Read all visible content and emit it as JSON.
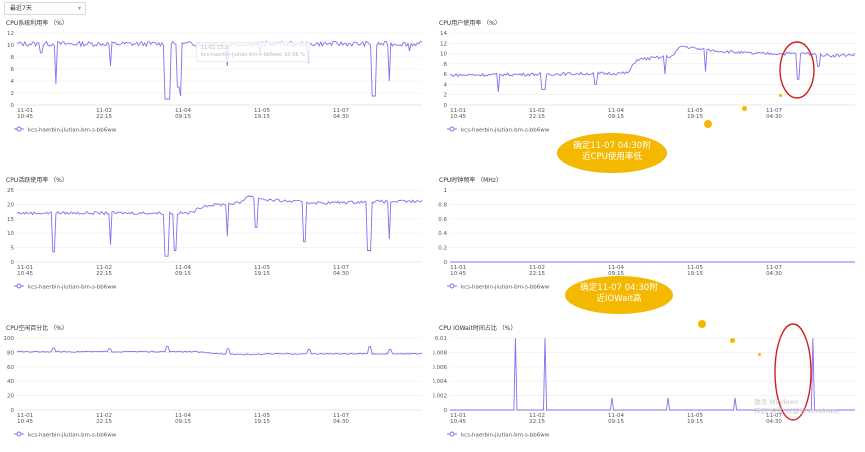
{
  "toolbar": {
    "range_label": "最近7天"
  },
  "x_ticks": [
    [
      "11-01",
      "10:45"
    ],
    [
      "11-02",
      "22:15"
    ],
    [
      "11-04",
      "09:15"
    ],
    [
      "11-05",
      "19:15"
    ],
    [
      "11-07",
      "04:30"
    ]
  ],
  "legend_label": "kcs-haerbin-jiutian-bm-s-bb6ww",
  "series_color": "#8c6cf0",
  "highlight_color": "#d21e1e",
  "panels": [
    {
      "id": "cpu_sys",
      "title": "CPU系统利用率 （%）",
      "chart_data": {
        "type": "line",
        "ylim": [
          0,
          12
        ],
        "yticks": [
          "12",
          "10",
          "8",
          "6",
          "4",
          "2",
          "0"
        ],
        "base": 10.2,
        "noise": 0.4,
        "trend": [],
        "dips": [
          [
            0.06,
            8.7,
            2
          ],
          [
            0.095,
            3.5,
            1
          ],
          [
            0.23,
            6.5,
            1
          ],
          [
            0.37,
            1,
            3
          ],
          [
            0.4,
            3,
            2
          ],
          [
            0.405,
            1.5,
            1
          ],
          [
            0.52,
            6.5,
            1
          ],
          [
            0.6,
            8.5,
            1
          ],
          [
            0.72,
            7,
            1
          ],
          [
            0.88,
            1.5,
            2
          ],
          [
            0.92,
            4,
            1
          ],
          [
            0.97,
            9,
            1
          ]
        ]
      }
    },
    {
      "id": "cpu_user",
      "title": "CPU用户使用率 （%）",
      "chart_data": {
        "type": "line",
        "ylim": [
          0,
          14
        ],
        "yticks": [
          "14",
          "12",
          "10",
          "8",
          "6",
          "4",
          "2",
          "0"
        ],
        "base": 5.8,
        "noise": 0.3,
        "trend": [
          [
            0,
            5.8
          ],
          [
            0.44,
            6.2
          ],
          [
            0.46,
            8.8
          ],
          [
            0.55,
            9.5
          ],
          [
            0.57,
            11.5
          ],
          [
            0.62,
            10.8
          ],
          [
            0.75,
            10
          ],
          [
            0.88,
            10
          ],
          [
            0.95,
            9.6
          ],
          [
            1,
            9.8
          ]
        ],
        "dips": [
          [
            0.12,
            2.5,
            1
          ],
          [
            0.23,
            3,
            2
          ],
          [
            0.36,
            4,
            1
          ],
          [
            0.53,
            6,
            1
          ],
          [
            0.63,
            6.5,
            1
          ],
          [
            0.86,
            5,
            2
          ],
          [
            0.91,
            7.5,
            1
          ]
        ]
      }
    },
    {
      "id": "cpu_act",
      "title": "CPU活跃使用率 （%）",
      "chart_data": {
        "type": "line",
        "ylim": [
          0,
          25
        ],
        "yticks": [
          "25",
          "20",
          "15",
          "10",
          "5",
          "0"
        ],
        "base": 17,
        "noise": 0.5,
        "trend": [
          [
            0,
            17
          ],
          [
            0.43,
            17
          ],
          [
            0.46,
            19.5
          ],
          [
            0.55,
            20.5
          ],
          [
            0.57,
            23
          ],
          [
            0.62,
            21.5
          ],
          [
            0.75,
            20.5
          ],
          [
            0.88,
            21
          ],
          [
            1,
            21
          ]
        ],
        "dips": [
          [
            0.09,
            3.5,
            1
          ],
          [
            0.23,
            6,
            1
          ],
          [
            0.37,
            2,
            2
          ],
          [
            0.39,
            4,
            1
          ],
          [
            0.52,
            9,
            1
          ],
          [
            0.59,
            12,
            1
          ],
          [
            0.71,
            7,
            1
          ],
          [
            0.87,
            4,
            2
          ],
          [
            0.92,
            8,
            1
          ]
        ]
      }
    },
    {
      "id": "cpu_freq",
      "title": "CPU时钟频率 （MHz）",
      "chart_data": {
        "type": "line",
        "ylim": [
          0,
          1
        ],
        "yticks": [
          "1",
          "0.8",
          "0.6",
          "0.4",
          "0.2",
          "0"
        ],
        "base": 0,
        "noise": 0,
        "trend": [],
        "dips": []
      }
    },
    {
      "id": "cpu_idle",
      "title": "CPU空闲百分比 （%）",
      "chart_data": {
        "type": "line",
        "ylim": [
          0,
          100
        ],
        "yticks": [
          "100",
          "80",
          "60",
          "40",
          "20",
          "0"
        ],
        "base": 81,
        "noise": 0.8,
        "trend": [
          [
            0,
            81
          ],
          [
            0.44,
            81
          ],
          [
            0.47,
            79
          ],
          [
            0.57,
            77
          ],
          [
            0.62,
            78
          ],
          [
            0.88,
            78
          ],
          [
            1,
            78
          ]
        ],
        "bumps": [
          [
            0.09,
            86
          ],
          [
            0.23,
            85
          ],
          [
            0.37,
            88
          ],
          [
            0.52,
            85
          ],
          [
            0.72,
            84
          ],
          [
            0.87,
            88
          ],
          [
            0.92,
            84
          ]
        ]
      }
    },
    {
      "id": "cpu_iowait",
      "title": "CPU IOWait时间占比 （%）",
      "chart_data": {
        "type": "line",
        "ylim": [
          0,
          0.01
        ],
        "yticks": [
          "0.01",
          "0.008",
          "0.006",
          "0.004",
          "0.002",
          "0"
        ],
        "base": 0,
        "noise": 0,
        "trend": [],
        "spikes": [
          [
            0.16,
            0.01
          ],
          [
            0.235,
            0.01
          ],
          [
            0.4,
            0.0017
          ],
          [
            0.54,
            0.0017
          ],
          [
            0.705,
            0.0017
          ],
          [
            0.895,
            0.01
          ]
        ]
      }
    }
  ],
  "hover": {
    "time": "11-02 13:3",
    "row": "kcs-haerbin-jiutian-bm-s-bb6ww: 10.06 %"
  },
  "callouts": [
    {
      "line1": "确定11-07 04:30附",
      "line2": "近CPU使用率低"
    },
    {
      "line1": "确定11-07 04:30附",
      "line2": "近IOWait高"
    }
  ],
  "watermark": {
    "line1": "激活 Windows",
    "line2": "转到\"设置\"以激活 Windows。"
  }
}
